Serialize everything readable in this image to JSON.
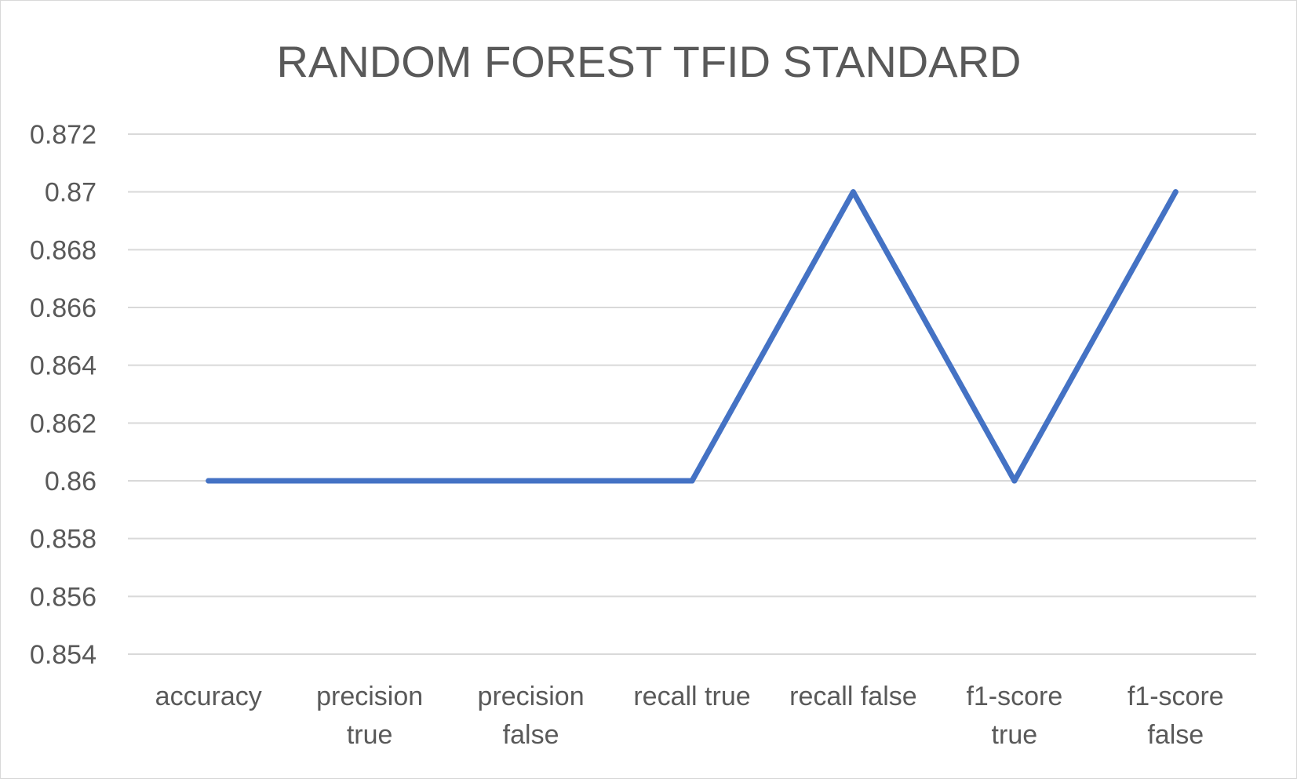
{
  "chart_data": {
    "type": "line",
    "title": "RANDOM FOREST TFID STANDARD",
    "categories": [
      [
        "accuracy"
      ],
      [
        "precision",
        "true"
      ],
      [
        "precision",
        "false"
      ],
      [
        "recall true"
      ],
      [
        "recall false"
      ],
      [
        "f1-score",
        "true"
      ],
      [
        "f1-score",
        "false"
      ]
    ],
    "series": [
      {
        "values": [
          0.86,
          0.86,
          0.86,
          0.86,
          0.87,
          0.86,
          0.87
        ],
        "color": "#4472c4"
      }
    ],
    "yticks": [
      "0.854",
      "0.856",
      "0.858",
      "0.86",
      "0.862",
      "0.864",
      "0.866",
      "0.868",
      "0.87",
      "0.872"
    ],
    "ylim": [
      0.854,
      0.872
    ],
    "grid": true,
    "legend": "none"
  }
}
